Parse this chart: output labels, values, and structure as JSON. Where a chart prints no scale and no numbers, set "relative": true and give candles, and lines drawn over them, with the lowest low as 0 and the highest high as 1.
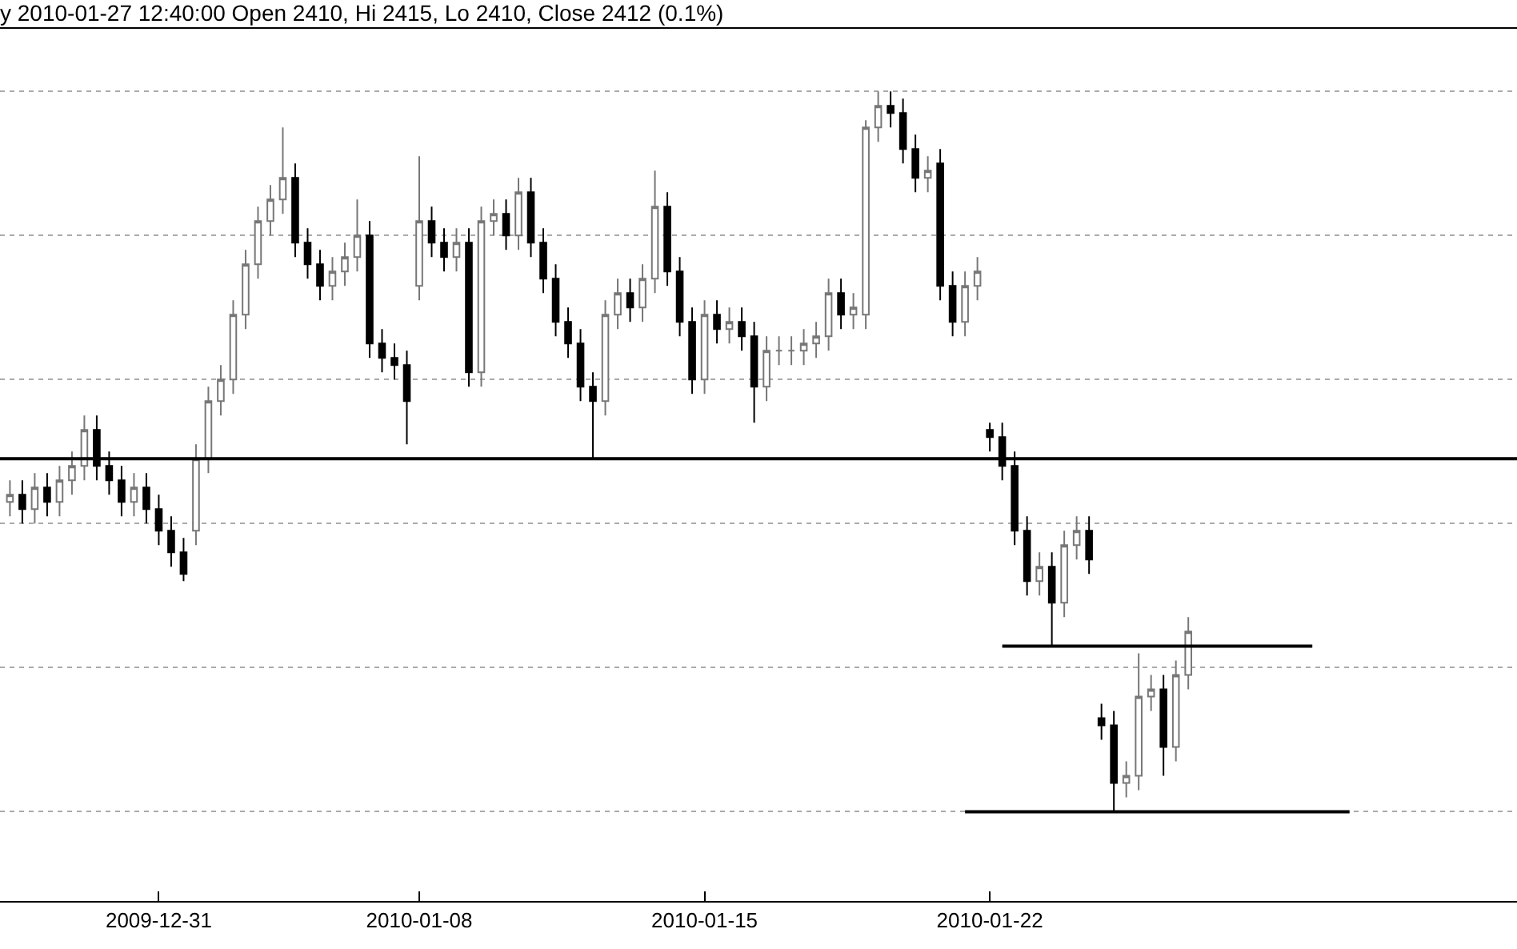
{
  "chart_data": {
    "type": "candlestick",
    "title": "y 2010-01-27 12:40:00 Open 2410, Hi 2415, Lo 2410, Close 2412 (0.1%)",
    "relative": true,
    "grid": "y",
    "categories": [
      null,
      null,
      null,
      null,
      null,
      null,
      null,
      null,
      null,
      null,
      null,
      null,
      "2009-12-31",
      null,
      null,
      null,
      null,
      null,
      null,
      null,
      null,
      null,
      null,
      null,
      null,
      null,
      null,
      null,
      null,
      null,
      null,
      null,
      null,
      "2010-01-08",
      null,
      null,
      null,
      null,
      null,
      null,
      null,
      null,
      null,
      null,
      null,
      null,
      null,
      null,
      null,
      null,
      null,
      null,
      null,
      null,
      null,
      null,
      "2010-01-15",
      null,
      null,
      null,
      null,
      null,
      null,
      null,
      null,
      null,
      null,
      null,
      null,
      null,
      null,
      null,
      null,
      null,
      null,
      null,
      null,
      null,
      null,
      "2010-01-22",
      null,
      null,
      null,
      null,
      null,
      null,
      null,
      null,
      null,
      null,
      null,
      null,
      null,
      null,
      null,
      null,
      null,
      null,
      null,
      null,
      null,
      null,
      null,
      null,
      null,
      null,
      null,
      null,
      null,
      null,
      null,
      null,
      null,
      null,
      null,
      null,
      null,
      null,
      null,
      null,
      null,
      null
    ],
    "ohlc": [
      [
        0.43,
        0.46,
        0.41,
        0.44
      ],
      [
        0.44,
        0.46,
        0.4,
        0.42
      ],
      [
        0.42,
        0.47,
        0.4,
        0.45
      ],
      [
        0.45,
        0.47,
        0.41,
        0.43
      ],
      [
        0.43,
        0.48,
        0.41,
        0.46
      ],
      [
        0.46,
        0.5,
        0.44,
        0.48
      ],
      [
        0.48,
        0.55,
        0.46,
        0.53
      ],
      [
        0.53,
        0.55,
        0.46,
        0.48
      ],
      [
        0.48,
        0.5,
        0.44,
        0.46
      ],
      [
        0.46,
        0.48,
        0.41,
        0.43
      ],
      [
        0.43,
        0.47,
        0.41,
        0.45
      ],
      [
        0.45,
        0.47,
        0.4,
        0.42
      ],
      [
        0.42,
        0.44,
        0.37,
        0.39
      ],
      [
        0.39,
        0.41,
        0.34,
        0.36
      ],
      [
        0.36,
        0.38,
        0.32,
        0.33
      ],
      [
        0.39,
        0.51,
        0.37,
        0.49
      ],
      [
        0.49,
        0.59,
        0.47,
        0.57
      ],
      [
        0.57,
        0.62,
        0.55,
        0.6
      ],
      [
        0.6,
        0.71,
        0.58,
        0.69
      ],
      [
        0.69,
        0.78,
        0.67,
        0.76
      ],
      [
        0.76,
        0.84,
        0.74,
        0.82
      ],
      [
        0.82,
        0.87,
        0.8,
        0.85
      ],
      [
        0.85,
        0.95,
        0.83,
        0.88
      ],
      [
        0.88,
        0.9,
        0.77,
        0.79
      ],
      [
        0.79,
        0.81,
        0.74,
        0.76
      ],
      [
        0.76,
        0.78,
        0.71,
        0.73
      ],
      [
        0.73,
        0.77,
        0.71,
        0.75
      ],
      [
        0.75,
        0.79,
        0.73,
        0.77
      ],
      [
        0.77,
        0.85,
        0.75,
        0.8
      ],
      [
        0.8,
        0.82,
        0.63,
        0.65
      ],
      [
        0.65,
        0.67,
        0.61,
        0.63
      ],
      [
        0.63,
        0.65,
        0.6,
        0.62
      ],
      [
        0.62,
        0.64,
        0.51,
        0.57
      ],
      [
        0.73,
        0.91,
        0.71,
        0.82
      ],
      [
        0.82,
        0.84,
        0.77,
        0.79
      ],
      [
        0.79,
        0.81,
        0.75,
        0.77
      ],
      [
        0.77,
        0.81,
        0.75,
        0.79
      ],
      [
        0.79,
        0.81,
        0.59,
        0.61
      ],
      [
        0.61,
        0.84,
        0.59,
        0.82
      ],
      [
        0.82,
        0.85,
        0.8,
        0.83
      ],
      [
        0.83,
        0.85,
        0.78,
        0.8
      ],
      [
        0.8,
        0.88,
        0.78,
        0.86
      ],
      [
        0.86,
        0.88,
        0.77,
        0.79
      ],
      [
        0.79,
        0.81,
        0.72,
        0.74
      ],
      [
        0.74,
        0.76,
        0.66,
        0.68
      ],
      [
        0.68,
        0.7,
        0.63,
        0.65
      ],
      [
        0.65,
        0.67,
        0.57,
        0.59
      ],
      [
        0.59,
        0.61,
        0.49,
        0.57
      ],
      [
        0.57,
        0.71,
        0.55,
        0.69
      ],
      [
        0.69,
        0.74,
        0.67,
        0.72
      ],
      [
        0.72,
        0.74,
        0.68,
        0.7
      ],
      [
        0.7,
        0.76,
        0.68,
        0.74
      ],
      [
        0.74,
        0.89,
        0.72,
        0.84
      ],
      [
        0.84,
        0.86,
        0.73,
        0.75
      ],
      [
        0.75,
        0.77,
        0.66,
        0.68
      ],
      [
        0.68,
        0.7,
        0.58,
        0.6
      ],
      [
        0.6,
        0.71,
        0.58,
        0.69
      ],
      [
        0.69,
        0.71,
        0.65,
        0.67
      ],
      [
        0.67,
        0.7,
        0.65,
        0.68
      ],
      [
        0.68,
        0.7,
        0.64,
        0.66
      ],
      [
        0.66,
        0.68,
        0.54,
        0.59
      ],
      [
        0.59,
        0.66,
        0.57,
        0.64
      ],
      [
        0.64,
        0.66,
        0.62,
        0.64
      ],
      [
        0.64,
        0.66,
        0.62,
        0.64
      ],
      [
        0.64,
        0.67,
        0.62,
        0.65
      ],
      [
        0.65,
        0.68,
        0.63,
        0.66
      ],
      [
        0.66,
        0.74,
        0.64,
        0.72
      ],
      [
        0.72,
        0.74,
        0.67,
        0.69
      ],
      [
        0.69,
        0.72,
        0.67,
        0.7
      ],
      [
        0.69,
        0.96,
        0.67,
        0.95
      ],
      [
        0.95,
        1.0,
        0.93,
        0.98
      ],
      [
        0.98,
        1.0,
        0.95,
        0.97
      ],
      [
        0.97,
        0.99,
        0.9,
        0.92
      ],
      [
        0.92,
        0.94,
        0.86,
        0.88
      ],
      [
        0.88,
        0.91,
        0.86,
        0.89
      ],
      [
        0.9,
        0.92,
        0.71,
        0.73
      ],
      [
        0.73,
        0.75,
        0.66,
        0.68
      ],
      [
        0.68,
        0.75,
        0.66,
        0.73
      ],
      [
        0.73,
        0.77,
        0.71,
        0.75
      ],
      [
        0.53,
        0.54,
        0.5,
        0.52
      ],
      [
        0.52,
        0.54,
        0.46,
        0.48
      ],
      [
        0.48,
        0.5,
        0.37,
        0.39
      ],
      [
        0.39,
        0.41,
        0.3,
        0.32
      ],
      [
        0.32,
        0.36,
        0.3,
        0.34
      ],
      [
        0.34,
        0.36,
        0.23,
        0.29
      ],
      [
        0.29,
        0.39,
        0.27,
        0.37
      ],
      [
        0.37,
        0.41,
        0.35,
        0.39
      ],
      [
        0.39,
        0.41,
        0.33,
        0.35
      ],
      [
        0.13,
        0.15,
        0.1,
        0.12
      ],
      [
        0.12,
        0.14,
        0.0,
        0.04
      ],
      [
        0.04,
        0.07,
        0.02,
        0.05
      ],
      [
        0.05,
        0.22,
        0.03,
        0.16
      ],
      [
        0.16,
        0.19,
        0.14,
        0.17
      ],
      [
        0.17,
        0.19,
        0.05,
        0.09
      ],
      [
        0.09,
        0.21,
        0.07,
        0.19
      ],
      [
        0.19,
        0.27,
        0.17,
        0.25
      ],
      null,
      null,
      null,
      null,
      null,
      null,
      null,
      null,
      null,
      null,
      null,
      null,
      null,
      null,
      null,
      null,
      null,
      null,
      null,
      null,
      null,
      null,
      null,
      null,
      null,
      null
    ],
    "series": [
      {
        "type": "line",
        "color": "#000000",
        "values": [
          null,
          null,
          null,
          null,
          null,
          null,
          null,
          null,
          null,
          null,
          null,
          null,
          null,
          null,
          null,
          null,
          null,
          null,
          null,
          null,
          null,
          null,
          null,
          null,
          null,
          null,
          null,
          null,
          null,
          null,
          null,
          null,
          null,
          null,
          null,
          null,
          null,
          null,
          null,
          null,
          null,
          null,
          null,
          null,
          null,
          null,
          null,
          null,
          null,
          null,
          null,
          null,
          null,
          null,
          null,
          null,
          null,
          null,
          null,
          null,
          null,
          null,
          null,
          null,
          null,
          null,
          null,
          null,
          null,
          null,
          null,
          null,
          null,
          null,
          null,
          null,
          null,
          null,
          null,
          null,
          0.23,
          0.23,
          0.23,
          0.23,
          0.23,
          0.23,
          0.23,
          0.23,
          0.23,
          0.23,
          0.23,
          0.23,
          0.23,
          0.23,
          0.23,
          0.23,
          0.23,
          0.23,
          0.23,
          0.23,
          0.23,
          0.23,
          0.23,
          0.23,
          0.23,
          0.23,
          null,
          null,
          null,
          null,
          null,
          null,
          null,
          null,
          null,
          null,
          null,
          null,
          null,
          null,
          null,
          null
        ]
      },
      {
        "type": "line",
        "color": "#000000",
        "values": [
          null,
          null,
          null,
          null,
          null,
          null,
          null,
          null,
          null,
          null,
          null,
          null,
          null,
          null,
          null,
          null,
          null,
          null,
          null,
          null,
          null,
          null,
          null,
          null,
          null,
          null,
          null,
          null,
          null,
          null,
          null,
          null,
          null,
          null,
          null,
          null,
          null,
          null,
          null,
          null,
          null,
          null,
          null,
          null,
          null,
          null,
          null,
          null,
          null,
          null,
          null,
          null,
          null,
          null,
          null,
          null,
          null,
          null,
          null,
          null,
          null,
          null,
          null,
          null,
          null,
          null,
          null,
          null,
          null,
          null,
          null,
          null,
          null,
          null,
          null,
          null,
          null,
          0.0,
          0.0,
          0.0,
          0.0,
          0.0,
          0.0,
          0.0,
          0.0,
          0.0,
          0.0,
          0.0,
          0.0,
          0.0,
          0.0,
          0.0,
          0.0,
          0.0,
          0.0,
          0.0,
          0.0,
          0.0,
          0.0,
          0.0,
          0.0,
          0.0,
          0.0,
          0.0,
          0.0,
          0.0,
          0.0,
          0.0,
          0.0,
          null,
          null,
          null,
          null,
          null,
          null,
          null,
          null,
          null,
          null,
          null,
          null,
          null
        ]
      }
    ],
    "ref_lines": [
      {
        "axis": "y",
        "value": 0.49,
        "label": null,
        "color": "#000000"
      }
    ]
  }
}
